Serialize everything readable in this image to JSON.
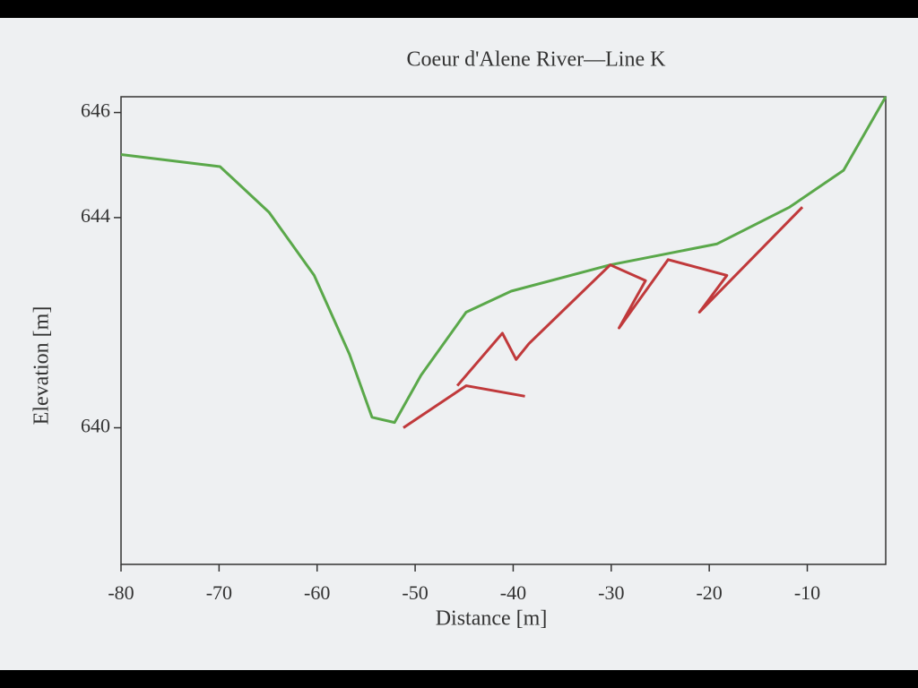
{
  "chart_data": {
    "type": "line",
    "title": "Coeur d'Alene River—Line K",
    "xlabel": "Distance [m]",
    "ylabel": "Elevation [m]",
    "xlim": [
      -80,
      -2
    ],
    "ylim": [
      637.4,
      646.3
    ],
    "xticks": [
      -80,
      -70,
      -60,
      -50,
      -40,
      -30,
      -20,
      -10
    ],
    "yticks": [
      646,
      644,
      640
    ],
    "grid": false,
    "series": [
      {
        "color": "#5aa84a",
        "x": [
          -80,
          -69.9,
          -64.9,
          -60.3,
          -56.7,
          -54.4,
          -52.1,
          -49.4,
          -44.8,
          -40.2,
          -30.1,
          -19.2,
          -11.8,
          -6.3,
          -2
        ],
        "values": [
          645.2,
          644.97,
          644.1,
          642.9,
          641.4,
          640.2,
          640.1,
          641.0,
          642.2,
          642.6,
          643.1,
          643.5,
          644.2,
          644.9,
          646.3
        ]
      },
      {
        "color": "#c0393b",
        "x": [
          -51.2,
          -44.8,
          -38.8
        ],
        "values": [
          640.0,
          640.8,
          640.6
        ]
      },
      {
        "color": "#c0393b",
        "x": [
          -45.7,
          -41.1,
          -39.7,
          -38.4,
          -30.1,
          -26.5,
          -29.2,
          -24.2,
          -18.2,
          -21.0,
          -10.5
        ],
        "values": [
          640.8,
          641.8,
          641.3,
          641.6,
          643.1,
          642.8,
          641.9,
          643.2,
          642.9,
          642.2,
          644.2
        ]
      }
    ]
  }
}
